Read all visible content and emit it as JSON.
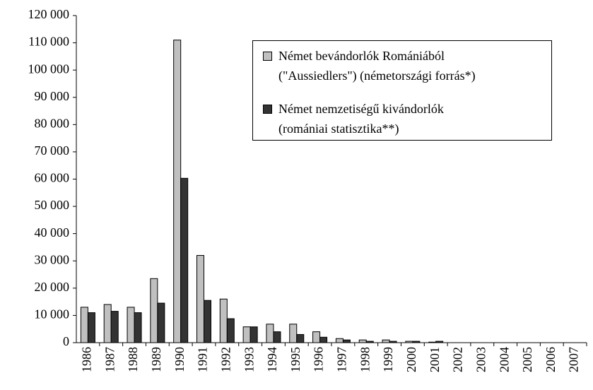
{
  "chart_data": {
    "type": "bar",
    "categories": [
      "1986",
      "1987",
      "1988",
      "1989",
      "1990",
      "1991",
      "1992",
      "1993",
      "1994",
      "1995",
      "1996",
      "1997",
      "1998",
      "1999",
      "2000",
      "2001",
      "2002",
      "2003",
      "2004",
      "2005",
      "2006",
      "2007"
    ],
    "series": [
      {
        "name": "Német bevándorlók Romániából\n(\"Aussiedlers\") (németországi forrás*)",
        "color": "#c0c0c0",
        "values": [
          13000,
          14000,
          13000,
          23500,
          111000,
          32000,
          16000,
          5800,
          6800,
          6800,
          4000,
          1500,
          1000,
          1000,
          500,
          200,
          0,
          0,
          0,
          0,
          0,
          0
        ]
      },
      {
        "name": "Német nemzetiségű kivándorlók\n(romániai statisztika**)",
        "color": "#333333",
        "values": [
          11000,
          11500,
          11000,
          14500,
          60300,
          15500,
          8800,
          5800,
          4000,
          3000,
          2000,
          1000,
          500,
          500,
          500,
          500,
          0,
          0,
          0,
          0,
          0,
          0
        ]
      }
    ],
    "ylim": [
      0,
      120000
    ],
    "yticks": [
      0,
      {
        "value": 10000,
        "label": "10 000"
      },
      {
        "value": 20000,
        "label": "20 000"
      },
      {
        "value": 30000,
        "label": "30 000"
      },
      {
        "value": 40000,
        "label": "40 000"
      },
      {
        "value": 50000,
        "label": "50 000"
      },
      {
        "value": 60000,
        "label": "60 000"
      },
      {
        "value": 70000,
        "label": "70 000"
      },
      {
        "value": 80000,
        "label": "80 000"
      },
      {
        "value": 90000,
        "label": "90 000"
      },
      {
        "value": 100000,
        "label": "100 000"
      },
      {
        "value": 110000,
        "label": "110 000"
      },
      {
        "value": 120000,
        "label": "120 000"
      }
    ],
    "grid": false,
    "legend": "upper right"
  }
}
